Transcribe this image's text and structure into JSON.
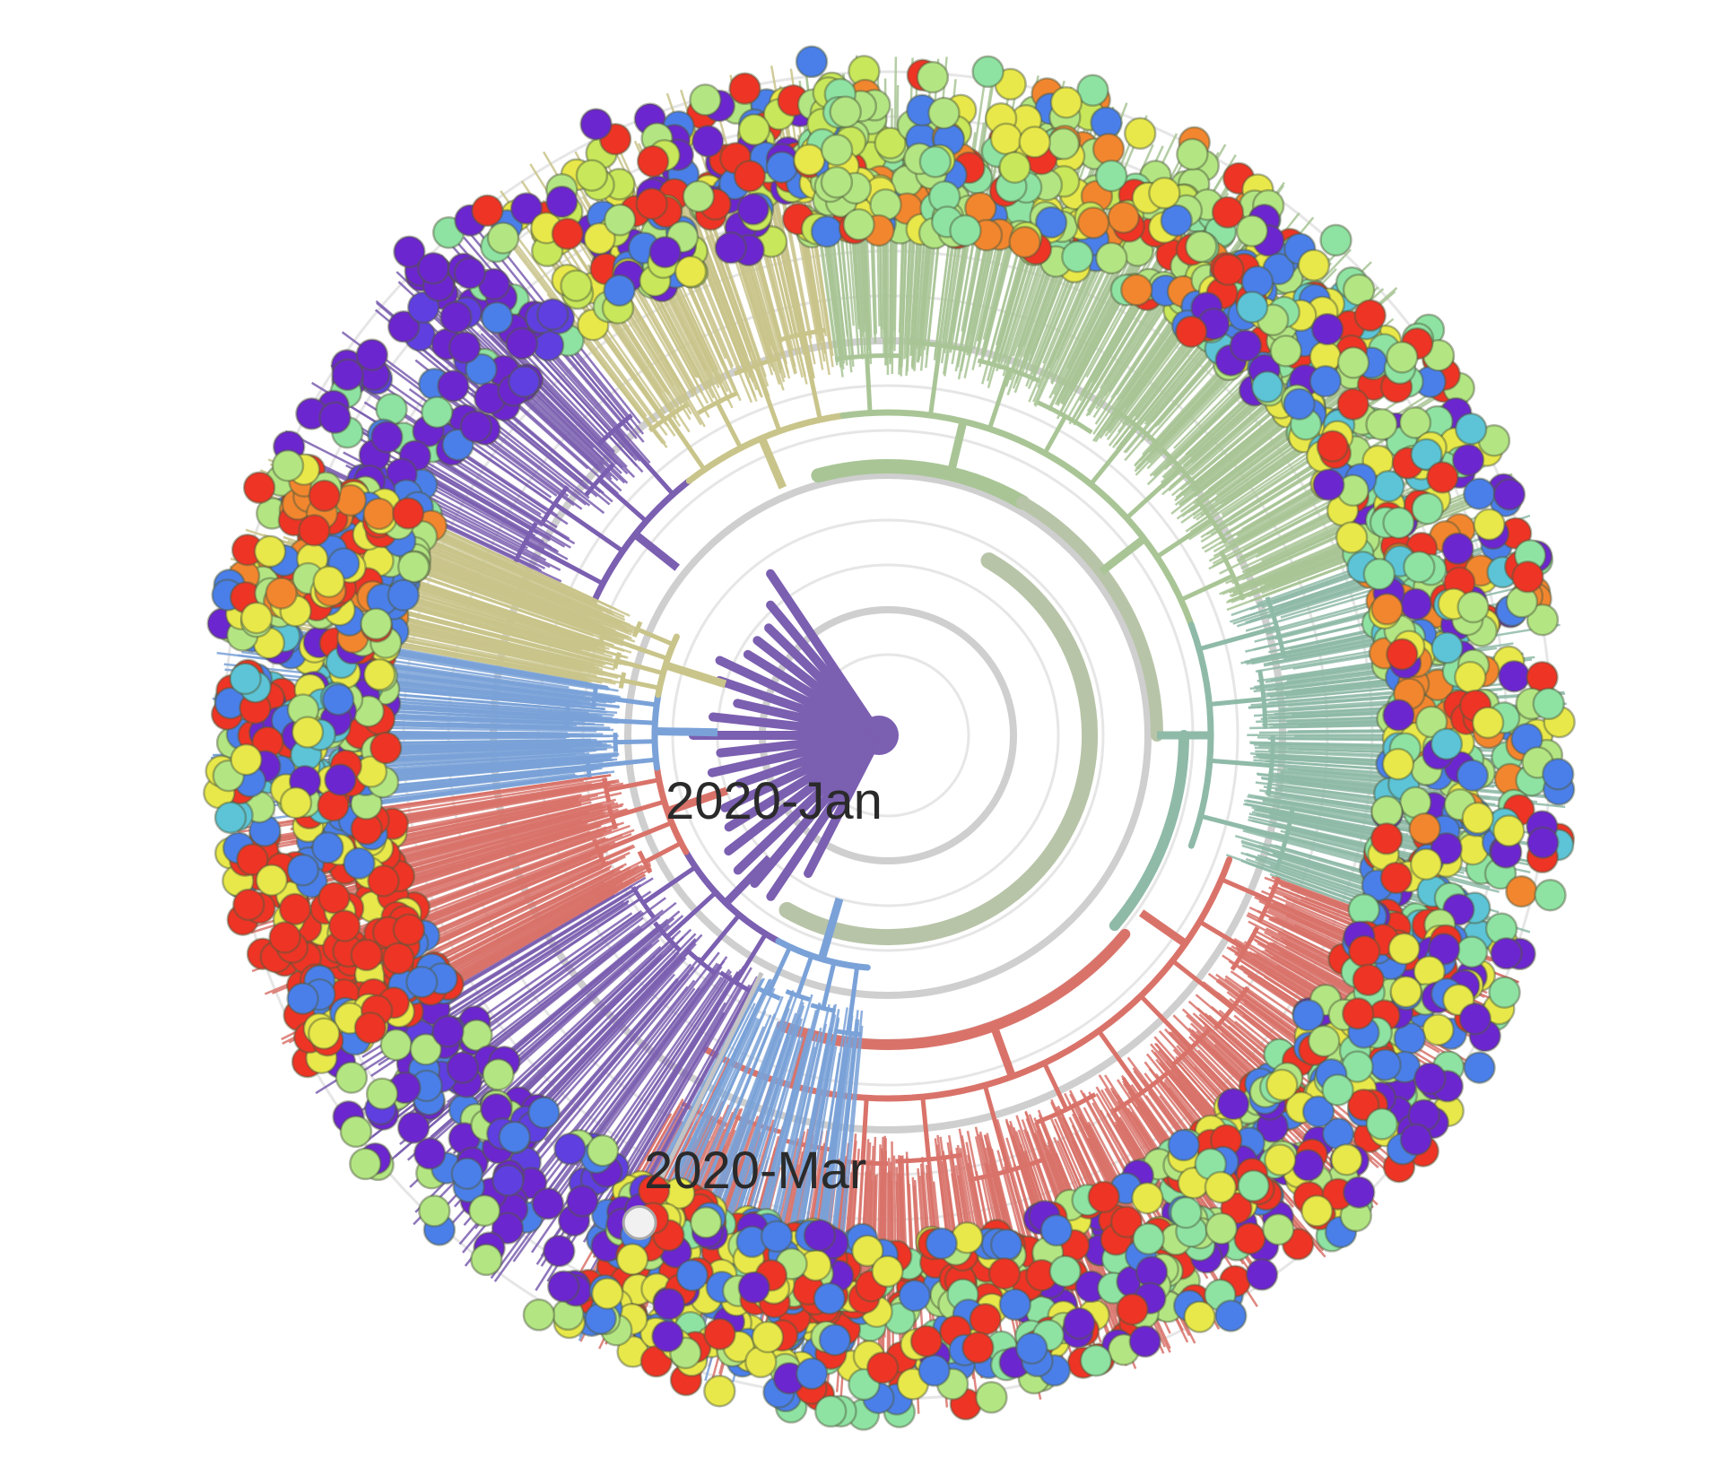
{
  "tree": {
    "time_axis_labels": [
      "2020-Jan",
      "2020-Mar"
    ],
    "colors": {
      "grid": "#e6e6e6",
      "grid_strong": "#cfcfcf",
      "root_branch": "#7b5fb0",
      "trunk_branch": "#b8c4a8",
      "branch_green": "#a9c596",
      "branch_olive": "#c9c48a",
      "branch_red": "#d9736a",
      "branch_teal": "#8fbaa8",
      "branch_blue": "#7aa2d8",
      "branch_grey": "#c4c4c4",
      "tip_palette": [
        "#b3e683",
        "#e8e84a",
        "#ee3425",
        "#4a7fea",
        "#6c26cf",
        "#8ee3a3",
        "#5cc4d6",
        "#f2862e",
        "#c8e75a",
        "#5f3fe0",
        "#f1f1f1"
      ]
    },
    "clades": [
      {
        "start": 205,
        "end": 232,
        "palette": [
          "#6c26cf",
          "#6c26cf",
          "#6c26cf",
          "#4a7fea",
          "#5f3fe0",
          "#8ee3a3"
        ],
        "branch": "#7b5fb0",
        "density": 90
      },
      {
        "start": 232,
        "end": 262,
        "palette": [
          "#b3e683",
          "#e8e84a",
          "#4a7fea",
          "#6c26cf",
          "#ee3425",
          "#c8e75a"
        ],
        "branch": "#c9c48a",
        "density": 150
      },
      {
        "start": 262,
        "end": 305,
        "palette": [
          "#b3e683",
          "#b3e683",
          "#e8e84a",
          "#ee3425",
          "#4a7fea",
          "#c8e75a",
          "#8ee3a3",
          "#f2862e"
        ],
        "branch": "#a9c596",
        "density": 260
      },
      {
        "start": 305,
        "end": 340,
        "palette": [
          "#b3e683",
          "#8ee3a3",
          "#e8e84a",
          "#ee3425",
          "#4a7fea",
          "#5cc4d6",
          "#6c26cf"
        ],
        "branch": "#a9c596",
        "density": 220
      },
      {
        "start": 340,
        "end": 380,
        "palette": [
          "#8ee3a3",
          "#b3e683",
          "#e8e84a",
          "#ee3425",
          "#4a7fea",
          "#5cc4d6",
          "#f2862e",
          "#6c26cf"
        ],
        "branch": "#8fbaa8",
        "density": 230
      },
      {
        "start": 380,
        "end": 410,
        "palette": [
          "#ee3425",
          "#e8e84a",
          "#b3e683",
          "#4a7fea",
          "#8ee3a3",
          "#6c26cf"
        ],
        "branch": "#d9736a",
        "density": 210
      },
      {
        "start": 410,
        "end": 450,
        "palette": [
          "#ee3425",
          "#ee3425",
          "#8ee3a3",
          "#b3e683",
          "#4a7fea",
          "#e8e84a",
          "#6c26cf"
        ],
        "branch": "#d9736a",
        "density": 240
      },
      {
        "start": 450,
        "end": 480,
        "palette": [
          "#ee3425",
          "#ee3425",
          "#4a7fea",
          "#8ee3a3",
          "#e8e84a"
        ],
        "branch": "#d9736a",
        "density": 170
      }
    ],
    "left_clades": [
      {
        "start": 118,
        "end": 150,
        "palette": [
          "#6c26cf",
          "#4a7fea",
          "#6c26cf",
          "#5f3fe0",
          "#b3e683"
        ],
        "branch": "#7b5fb0",
        "density": 110
      },
      {
        "start": 150,
        "end": 172,
        "palette": [
          "#ee3425",
          "#ee3425",
          "#ee3425",
          "#e8e84a",
          "#4a7fea"
        ],
        "branch": "#d9736a",
        "density": 170
      },
      {
        "start": 172,
        "end": 190,
        "palette": [
          "#4a7fea",
          "#6c26cf",
          "#ee3425",
          "#5cc4d6",
          "#b3e683",
          "#e8e84a"
        ],
        "branch": "#7aa2d8",
        "density": 160
      },
      {
        "start": 190,
        "end": 205,
        "palette": [
          "#e8e84a",
          "#b3e683",
          "#ee3425",
          "#4a7fea",
          "#f2862e"
        ],
        "branch": "#c9c48a",
        "density": 140
      },
      {
        "start": 95,
        "end": 118,
        "palette": [
          "#4a7fea",
          "#ee3425",
          "#e8e84a",
          "#6c26cf",
          "#b3e683"
        ],
        "branch": "#7aa2d8",
        "density": 100
      }
    ]
  }
}
